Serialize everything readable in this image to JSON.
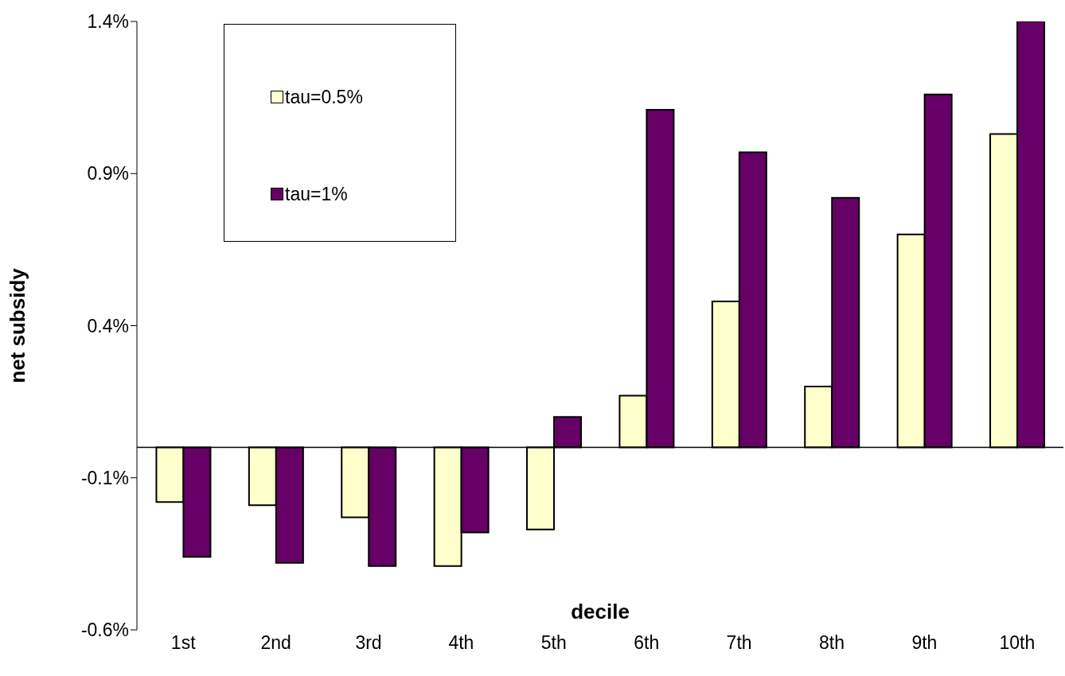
{
  "chart_data": {
    "type": "bar",
    "xlabel": "decile",
    "ylabel": "net subsidy",
    "categories": [
      "1st",
      "2nd",
      "3rd",
      "4th",
      "5th",
      "6th",
      "7th",
      "8th",
      "9th",
      "10th"
    ],
    "series": [
      {
        "name": "tau=0.5%",
        "color": "#ffffcc",
        "values": [
          -0.18,
          -0.19,
          -0.23,
          -0.39,
          -0.27,
          0.17,
          0.48,
          0.2,
          0.7,
          1.03
        ]
      },
      {
        "name": "tau=1%",
        "color": "#660066",
        "values": [
          -0.36,
          -0.38,
          -0.39,
          -0.28,
          0.1,
          1.11,
          0.97,
          0.82,
          1.16,
          1.4
        ]
      }
    ],
    "ylim": [
      -0.6,
      1.4
    ],
    "yticks": [
      {
        "value": -0.6,
        "label": "-0.6%"
      },
      {
        "value": -0.1,
        "label": "-0.1%"
      },
      {
        "value": 0.4,
        "label": "0.4%"
      },
      {
        "value": 0.9,
        "label": "0.9%"
      },
      {
        "value": 1.4,
        "label": "1.4%"
      }
    ],
    "grid": false,
    "legend": "top left"
  }
}
